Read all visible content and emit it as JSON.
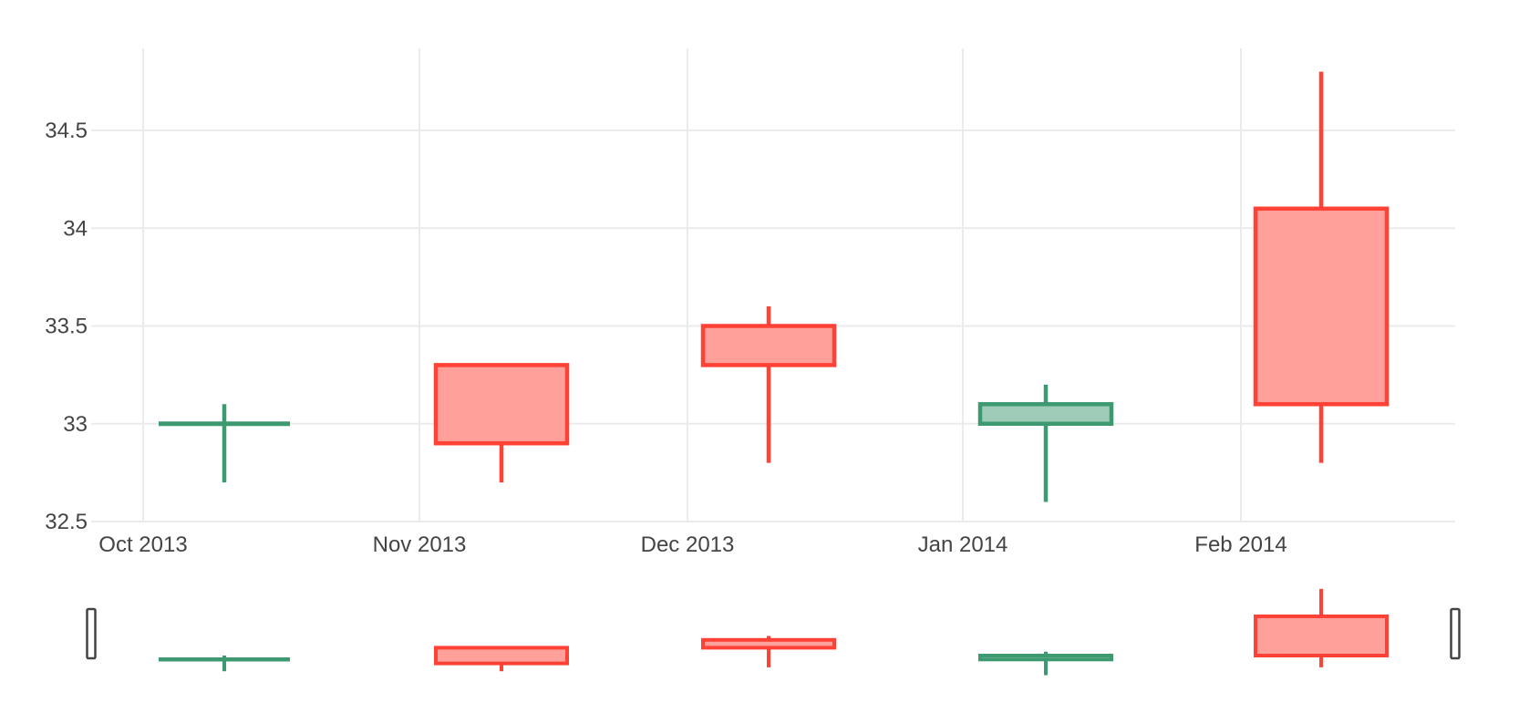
{
  "figure": {
    "background": "#ffffff"
  },
  "chart_data": {
    "type": "candlestick",
    "title": "",
    "xlabel": "",
    "ylabel": "",
    "x_ticks": [
      "Oct 2013",
      "Nov 2013",
      "Dec 2013",
      "Jan 2014",
      "Feb 2014"
    ],
    "y_ticks": [
      "32.5",
      "33",
      "33.5",
      "34",
      "34.5"
    ],
    "ylim": [
      32.5,
      34.92
    ],
    "grid": true,
    "legend": "none",
    "series": [
      {
        "x": "Oct 2013",
        "open": 33.0,
        "high": 33.1,
        "low": 32.7,
        "close": 33.0,
        "direction": "increasing"
      },
      {
        "x": "Nov 2013",
        "open": 33.3,
        "high": 33.3,
        "low": 32.7,
        "close": 32.9,
        "direction": "decreasing"
      },
      {
        "x": "Dec 2013",
        "open": 33.5,
        "high": 33.6,
        "low": 32.8,
        "close": 33.3,
        "direction": "decreasing"
      },
      {
        "x": "Jan 2014",
        "open": 33.0,
        "high": 33.2,
        "low": 32.6,
        "close": 33.1,
        "direction": "increasing"
      },
      {
        "x": "Feb 2014",
        "open": 34.1,
        "high": 34.8,
        "low": 32.8,
        "close": 33.1,
        "direction": "decreasing"
      }
    ],
    "colors": {
      "increasing_line": "#3D9970",
      "increasing_fill": "#9ECCB8",
      "decreasing_line": "#FF4136",
      "decreasing_fill": "#FFA09A",
      "grid": "#EBEBEB",
      "tick_label": "#444444",
      "background": "#FFFFFF"
    },
    "rangeslider": {
      "visible": true,
      "handle_fill": "#FFFFFF",
      "handle_border": "#444444"
    }
  }
}
